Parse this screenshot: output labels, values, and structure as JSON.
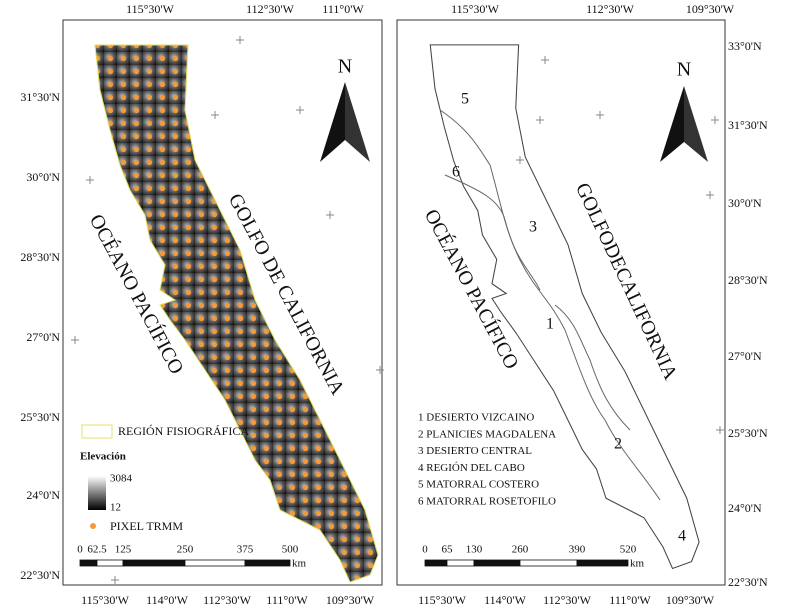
{
  "left_panel": {
    "top_labels": [
      "115°30'W",
      "112°30'W",
      "111°0'W"
    ],
    "bottom_labels": [
      "115°30'W",
      "114°0'W",
      "112°30'W",
      "111°0'W",
      "109°30'W"
    ],
    "side_labels": [
      "31°30'N",
      "30°0'N",
      "28°30'N",
      "27°0'N",
      "25°30'N",
      "24°0'N",
      "22°30'N"
    ],
    "north": "N",
    "ocean_label": "OCÉANO PACÍFICO",
    "gulf_label": "GOLFO DE CALIFORNIA",
    "legend": {
      "region": "REGIÓN FISIOGRÁFICA",
      "elevation_title": "Elevación",
      "elevation_max": "3084",
      "elevation_min": "12",
      "pixel": "PIXEL TRMM"
    },
    "scale": {
      "ticks": [
        "0",
        "62.5",
        "125",
        "250",
        "375",
        "500"
      ],
      "unit": "km"
    }
  },
  "right_panel": {
    "top_labels": [
      "115°30'W",
      "112°30'W",
      "109°30'W"
    ],
    "bottom_labels": [
      "115°30'W",
      "114°0'W",
      "112°30'W",
      "111°0'W",
      "109°30'W"
    ],
    "side_labels": [
      "33°0'N",
      "31°30'N",
      "30°0'N",
      "28°30'N",
      "27°0'N",
      "25°30'N",
      "24°0'N",
      "22°30'N"
    ],
    "north": "N",
    "ocean_label": "OCÉANO PACÍFICO",
    "gulf_label": "GOLFODECALIFORNIA",
    "region_numbers": [
      "5",
      "6",
      "3",
      "1",
      "2",
      "4"
    ],
    "regions": [
      "1 DESIERTO VIZCAINO",
      "2 PLANICIES MAGDALENA",
      "3 DESIERTO CENTRAL",
      "4 REGIÓN DEL CABO",
      "5 MATORRAL COSTERO",
      "6 MATORRAL ROSETOFILO"
    ],
    "scale": {
      "ticks": [
        "0",
        "65",
        "130",
        "260",
        "390",
        "520"
      ],
      "unit": "km"
    }
  }
}
